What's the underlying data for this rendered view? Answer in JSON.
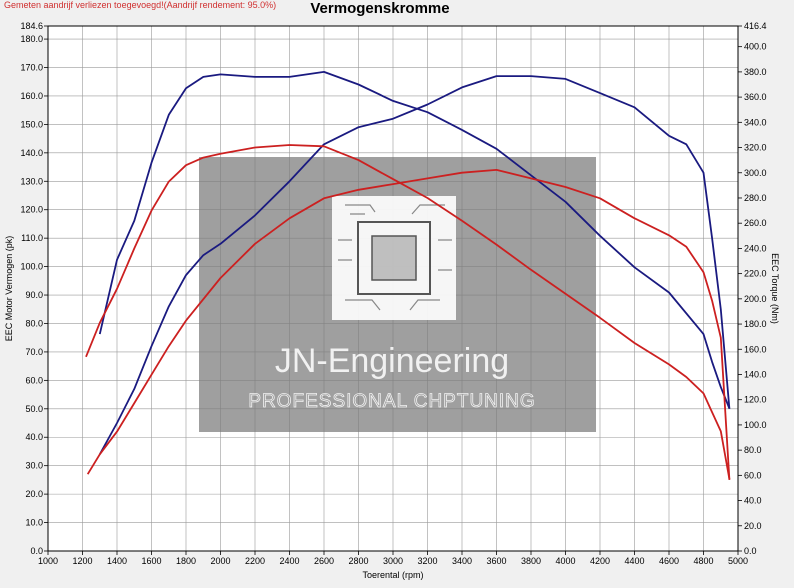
{
  "header": {
    "note": "Gemeten aandrijf verliezen toegevoegd!(Aandrijf rendement: 95.0%)",
    "title": "Vermogenskromme"
  },
  "watermark": {
    "title": "JN-Engineering",
    "subtitle": "PROFESSIONAL CHPTUNING",
    "icon": "chip-icon"
  },
  "chart_data": {
    "type": "line",
    "title": "Vermogenskromme",
    "xlabel": "Toerental (rpm)",
    "ylabel_left": "EEC Motor Vermogen (pk)",
    "ylabel_right": "EEC Torque (Nm)",
    "xlim": [
      1000,
      5000
    ],
    "ylim_left": [
      0,
      184.6
    ],
    "ylim_right": [
      0,
      416.4
    ],
    "grid": true,
    "x_ticks": [
      1000,
      1200,
      1400,
      1600,
      1800,
      2000,
      2200,
      2400,
      2600,
      2800,
      3000,
      3200,
      3400,
      3600,
      3800,
      4000,
      4200,
      4400,
      4600,
      4800,
      5000
    ],
    "x_tick_labels": [
      "1000",
      "1200",
      "1400",
      "1600",
      "1800",
      "2000",
      "2200",
      "2400",
      "2600",
      "2800",
      "3000",
      "3200",
      "3400",
      "3600",
      "3800",
      "4000",
      "4200",
      "4400",
      "4600",
      "4800",
      "5000"
    ],
    "y_left_ticks": [
      0,
      10,
      20,
      30,
      40,
      50,
      60,
      70,
      80,
      90,
      100,
      110,
      120,
      130,
      140,
      150,
      160,
      170,
      180,
      184.6
    ],
    "y_left_tick_labels": [
      "0.0",
      "10.0",
      "20.0",
      "30.0",
      "40.0",
      "50.0",
      "60.0",
      "70.0",
      "80.0",
      "90.0",
      "100.0",
      "110.0",
      "120.0",
      "130.0",
      "140.0",
      "150.0",
      "160.0",
      "170.0",
      "180.0",
      "184.6"
    ],
    "y_right_ticks": [
      0,
      20,
      40,
      60,
      80,
      100,
      120,
      140,
      160,
      180,
      200,
      220,
      240,
      260,
      280,
      300,
      320,
      340,
      360,
      380,
      400,
      416.4
    ],
    "y_right_tick_labels": [
      "0.0",
      "20.0",
      "40.0",
      "60.0",
      "80.0",
      "100.0",
      "120.0",
      "140.0",
      "160.0",
      "180.0",
      "200.0",
      "220.0",
      "240.0",
      "260.0",
      "280.0",
      "300.0",
      "320.0",
      "340.0",
      "360.0",
      "380.0",
      "400.0",
      "416.4"
    ],
    "series": [
      {
        "role": "torque-tuned",
        "axis": "right",
        "color": "#1a1a80",
        "x": [
          1300,
          1400,
          1500,
          1600,
          1700,
          1800,
          1900,
          2000,
          2200,
          2400,
          2600,
          2800,
          3000,
          3200,
          3400,
          3600,
          3800,
          4000,
          4200,
          4400,
          4600,
          4800,
          4850,
          4900,
          4950
        ],
        "y": [
          172,
          231,
          262,
          308,
          346,
          367,
          376,
          378,
          376,
          376,
          380,
          370,
          357,
          348,
          334,
          319,
          298,
          277,
          250,
          225,
          205,
          172,
          150,
          130,
          113
        ]
      },
      {
        "role": "power-tuned",
        "axis": "left",
        "color": "#1a1a80",
        "x": [
          1300,
          1400,
          1500,
          1600,
          1700,
          1800,
          1900,
          2000,
          2200,
          2400,
          2600,
          2800,
          3000,
          3200,
          3400,
          3600,
          3800,
          4000,
          4200,
          4400,
          4600,
          4700,
          4800,
          4850,
          4900,
          4950
        ],
        "y": [
          34,
          45,
          57,
          72,
          86,
          97,
          104,
          108,
          118,
          130,
          143,
          149,
          152,
          157,
          163,
          167,
          167,
          166,
          161,
          156,
          146,
          143,
          133,
          110,
          85,
          50
        ]
      },
      {
        "role": "torque-stock",
        "axis": "right",
        "color": "#cc2020",
        "x": [
          1220,
          1300,
          1400,
          1500,
          1600,
          1700,
          1800,
          1900,
          2000,
          2200,
          2400,
          2600,
          2800,
          3000,
          3200,
          3400,
          3600,
          3800,
          4000,
          4200,
          4400,
          4600,
          4700,
          4800,
          4850,
          4900,
          4950
        ],
        "y": [
          154,
          181,
          208,
          240,
          270,
          293,
          306,
          312,
          315,
          320,
          322,
          321,
          310,
          295,
          280,
          262,
          243,
          223,
          204,
          185,
          165,
          148,
          138,
          125,
          110,
          95,
          57
        ]
      },
      {
        "role": "power-stock",
        "axis": "left",
        "color": "#cc2020",
        "x": [
          1230,
          1300,
          1400,
          1500,
          1600,
          1700,
          1800,
          2000,
          2200,
          2400,
          2600,
          2800,
          3000,
          3200,
          3400,
          3600,
          3800,
          4000,
          4200,
          4400,
          4600,
          4700,
          4800,
          4850,
          4900,
          4950
        ],
        "y": [
          27,
          34,
          42,
          52,
          62,
          72,
          81,
          96,
          108,
          117,
          124,
          127,
          129,
          131,
          133,
          134,
          131,
          128,
          124,
          117,
          111,
          107,
          98,
          88,
          75,
          25
        ]
      }
    ]
  }
}
